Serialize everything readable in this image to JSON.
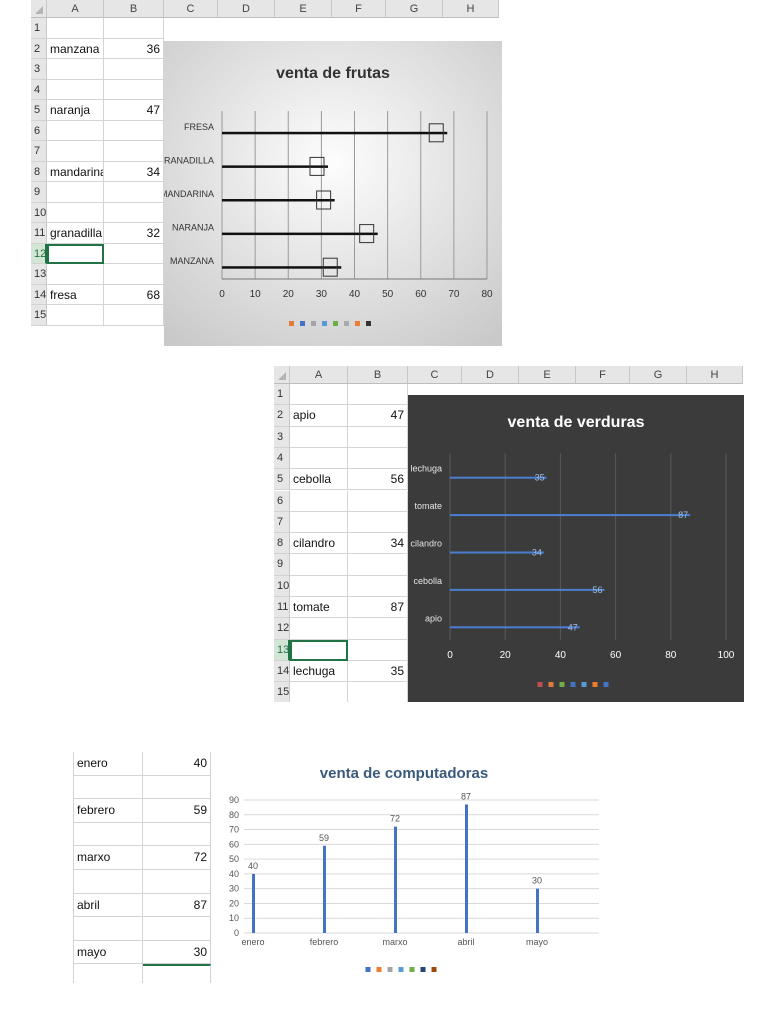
{
  "column_letters": [
    "A",
    "B",
    "C",
    "D",
    "E",
    "F",
    "G",
    "H"
  ],
  "row_numbers": [
    "1",
    "2",
    "3",
    "4",
    "5",
    "6",
    "7",
    "8",
    "9",
    "10",
    "11",
    "12",
    "13",
    "14",
    "15"
  ],
  "sheet_frutas": {
    "selected_row": "12",
    "cells": [
      {
        "row": "2",
        "label": "manzana",
        "value": "36"
      },
      {
        "row": "5",
        "label": "naranja",
        "value": "47"
      },
      {
        "row": "8",
        "label": "mandarina",
        "value": "34"
      },
      {
        "row": "11",
        "label": "granadilla",
        "value": "32"
      },
      {
        "row": "14",
        "label": "fresa",
        "value": "68"
      }
    ]
  },
  "sheet_verduras": {
    "selected_row": "13",
    "partial_row": "15",
    "cells": [
      {
        "row": "2",
        "label": "apio",
        "value": "47"
      },
      {
        "row": "5",
        "label": "cebolla",
        "value": "56"
      },
      {
        "row": "8",
        "label": "cilandro",
        "value": "34"
      },
      {
        "row": "11",
        "label": "tomate",
        "value": "87"
      },
      {
        "row": "14",
        "label": "lechuga",
        "value": "35"
      }
    ]
  },
  "sheet_computadoras": {
    "cells": [
      {
        "label": "enero",
        "value": "40"
      },
      {
        "label": "febrero",
        "value": "59"
      },
      {
        "label": "marxo",
        "value": "72"
      },
      {
        "label": "abril",
        "value": "87"
      },
      {
        "label": "mayo",
        "value": "30"
      }
    ]
  },
  "chart_data": [
    {
      "type": "bar",
      "orientation": "horizontal",
      "title": "venta de frutas",
      "categories": [
        "MANZANA",
        "NARANJA",
        "MANDARINA",
        "GRANADILLA",
        "FRESA"
      ],
      "values": [
        36,
        47,
        34,
        32,
        68
      ],
      "x_ticks": [
        "0",
        "10",
        "20",
        "30",
        "40",
        "50",
        "60",
        "70",
        "80"
      ],
      "xlim": [
        0,
        80
      ],
      "grid": true,
      "legend": "bottom",
      "colors": {
        "bar": "#111111",
        "background": "#dcdcdc",
        "text": "#333333"
      }
    },
    {
      "type": "bar",
      "orientation": "horizontal",
      "title": "venta de verduras",
      "categories": [
        "apio",
        "cebolla",
        "cilandro",
        "tomate",
        "lechuga"
      ],
      "values": [
        47,
        56,
        34,
        87,
        35
      ],
      "data_labels": [
        "47",
        "56",
        "34",
        "87",
        "35"
      ],
      "x_ticks": [
        "0",
        "20",
        "40",
        "60",
        "80",
        "100"
      ],
      "xlim": [
        0,
        100
      ],
      "grid": true,
      "legend": "bottom",
      "colors": {
        "bar": "#4a7fd1",
        "background": "#3a3a3a",
        "text": "#ffffff"
      }
    },
    {
      "type": "bar",
      "orientation": "vertical",
      "title": "venta de computadoras",
      "categories": [
        "enero",
        "febrero",
        "marxo",
        "abril",
        "mayo"
      ],
      "values": [
        40,
        59,
        72,
        87,
        30
      ],
      "data_labels": [
        "40",
        "59",
        "72",
        "87",
        "30"
      ],
      "y_ticks": [
        "0",
        "10",
        "20",
        "30",
        "40",
        "50",
        "60",
        "70",
        "80",
        "90"
      ],
      "ylim": [
        0,
        90
      ],
      "grid": true,
      "legend": "bottom",
      "colors": {
        "bar": "#4472c4",
        "title": "#3a5a7c"
      }
    }
  ],
  "legend_swatch_colors": {
    "frutas": [
      "#e07b39",
      "#4472c4",
      "#a5a5a5",
      "#5b9bd5",
      "#70ad47",
      "#aaaaaa",
      "#ed7d31",
      "#333333"
    ],
    "verduras": [
      "#c0504d",
      "#e07b39",
      "#70ad47",
      "#4472c4",
      "#5b9bd5",
      "#ed7d31",
      "#4472c4"
    ],
    "computadoras": [
      "#4472c4",
      "#ed7d31",
      "#a5a5a5",
      "#5b9bd5",
      "#70ad47",
      "#264478",
      "#9e480e"
    ]
  }
}
